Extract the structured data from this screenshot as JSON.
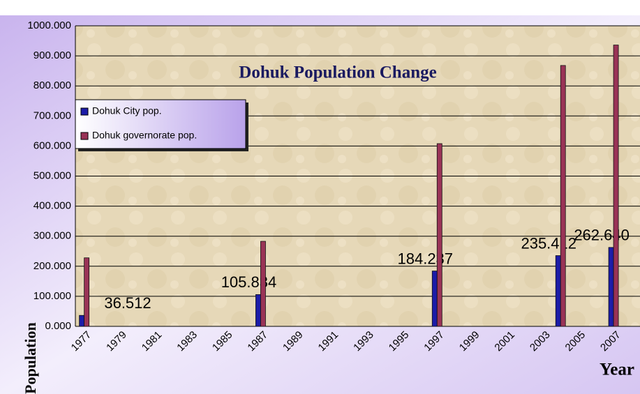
{
  "chart_data": {
    "type": "bar",
    "title": "Dohuk Population Change",
    "x_label": "Year",
    "y_label": "Population",
    "categories": [
      "1977",
      null,
      "1979",
      null,
      "1981",
      null,
      "1983",
      null,
      "1985",
      null,
      "1987",
      null,
      "1989",
      null,
      "1991",
      null,
      "1993",
      null,
      "1995",
      null,
      "1997",
      null,
      "1999",
      null,
      "2001",
      null,
      "2003",
      null,
      "2005",
      null,
      "2007",
      null
    ],
    "series": [
      {
        "name": "Dohuk City pop.",
        "color": "#1c1ca8",
        "values": [
          36.512,
          null,
          null,
          null,
          null,
          null,
          null,
          null,
          null,
          null,
          105.834,
          null,
          null,
          null,
          null,
          null,
          null,
          null,
          null,
          null,
          184.237,
          null,
          null,
          null,
          null,
          null,
          null,
          235.412,
          null,
          null,
          262.64,
          null
        ],
        "value_labels": [
          "36.512",
          null,
          null,
          null,
          null,
          null,
          null,
          null,
          null,
          null,
          "105.834",
          null,
          null,
          null,
          null,
          null,
          null,
          null,
          null,
          null,
          "184.237",
          null,
          null,
          null,
          null,
          null,
          null,
          "235.412",
          null,
          null,
          "262.640",
          null
        ]
      },
      {
        "name": "Dohuk governorate pop.",
        "color": "#993356",
        "values": [
          228,
          null,
          null,
          null,
          null,
          null,
          null,
          null,
          null,
          null,
          283,
          null,
          null,
          null,
          null,
          null,
          null,
          null,
          null,
          null,
          608,
          null,
          null,
          null,
          null,
          null,
          null,
          868,
          null,
          null,
          936,
          null
        ]
      }
    ],
    "ylim": [
      0,
      1000
    ],
    "yticks": [
      {
        "value": 0,
        "label": "0.000"
      },
      {
        "value": 100,
        "label": "100.000"
      },
      {
        "value": 200,
        "label": "200.000"
      },
      {
        "value": 300,
        "label": "300.000"
      },
      {
        "value": 400,
        "label": "400.000"
      },
      {
        "value": 500,
        "label": "500.000"
      },
      {
        "value": 600,
        "label": "600.000"
      },
      {
        "value": 700,
        "label": "700.000"
      },
      {
        "value": 800,
        "label": "800.000"
      },
      {
        "value": 900,
        "label": "900.000"
      },
      {
        "value": 1000,
        "label": "1000.000"
      }
    ],
    "grid": true,
    "legend": "upper left"
  }
}
